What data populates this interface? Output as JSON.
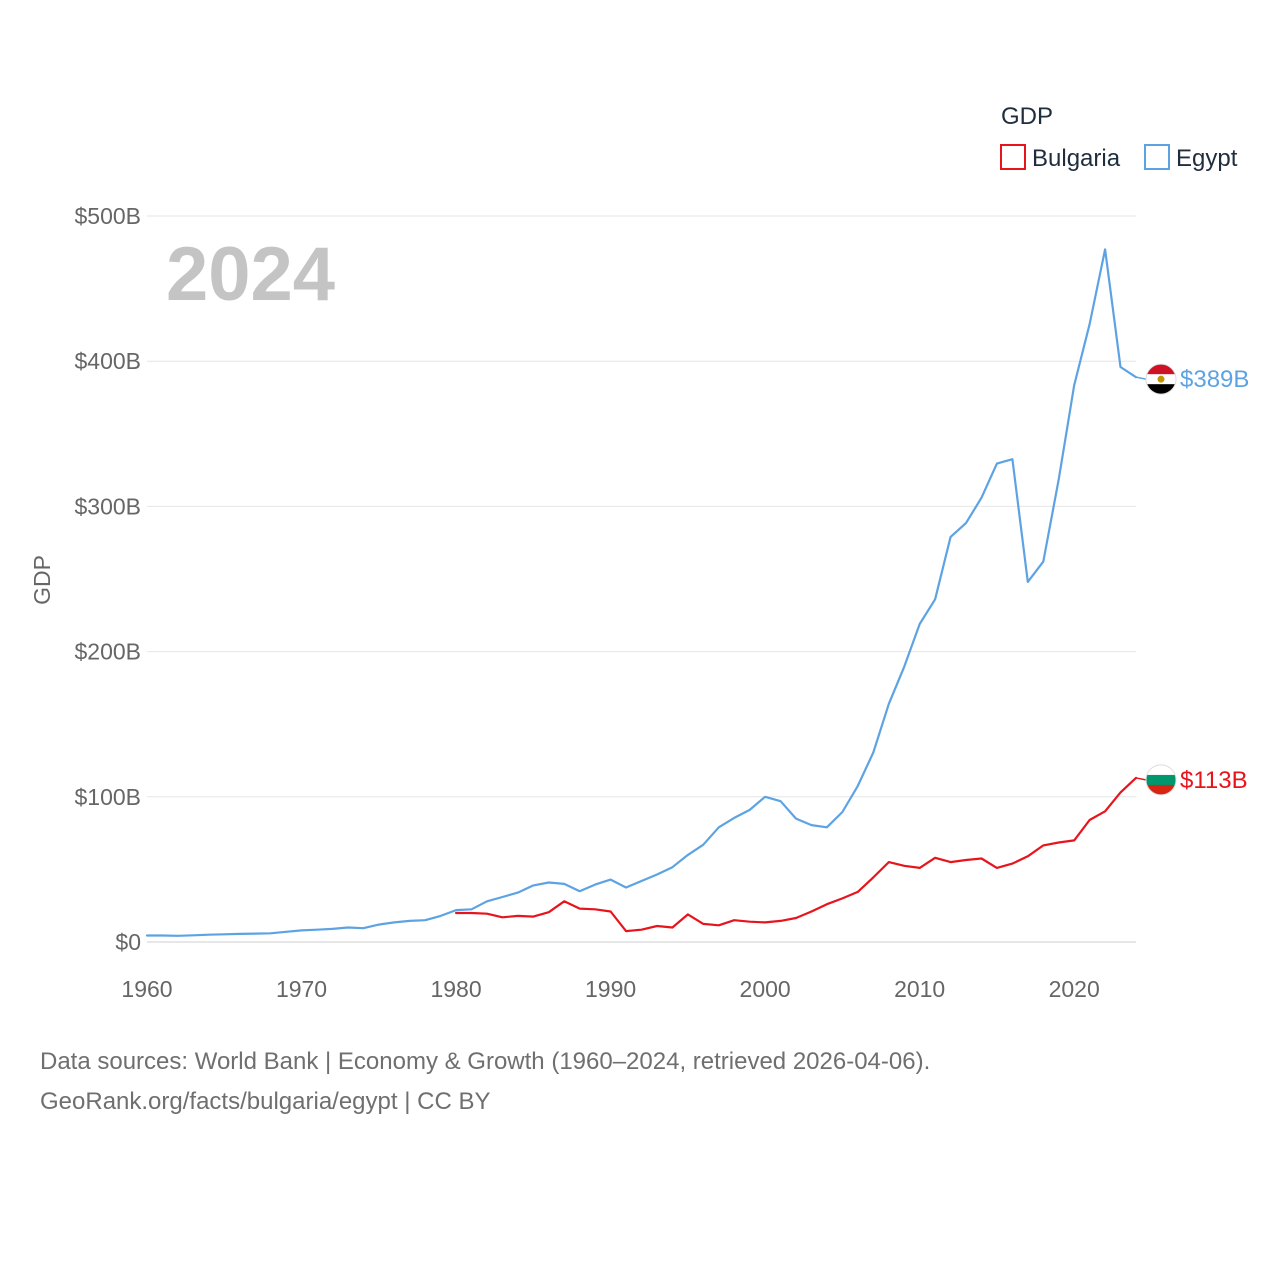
{
  "chart_data": {
    "type": "line",
    "title": "GDP",
    "year_overlay": "2024",
    "xlabel": "",
    "ylabel": "GDP",
    "xlim": [
      1960,
      2024
    ],
    "ylim": [
      0,
      500
    ],
    "unit": "billion USD",
    "x_ticks": [
      1960,
      1970,
      1980,
      1990,
      2000,
      2010,
      2020
    ],
    "x_tick_labels": [
      "1960",
      "1970",
      "1980",
      "1990",
      "2000",
      "2010",
      "2020"
    ],
    "y_ticks": [
      0,
      100,
      200,
      300,
      400,
      500
    ],
    "y_tick_labels": [
      "$0",
      "$100B",
      "$200B",
      "$300B",
      "$400B",
      "$500B"
    ],
    "grid": true,
    "legend": {
      "title": "GDP",
      "position": "top-right"
    },
    "series": [
      {
        "name": "Bulgaria",
        "color": "#e8141c",
        "end_label": "$113B",
        "flag_icon": "bulgaria-flag-icon",
        "x": [
          1980,
          1981,
          1982,
          1983,
          1984,
          1985,
          1986,
          1987,
          1988,
          1989,
          1990,
          1991,
          1992,
          1993,
          1994,
          1995,
          1996,
          1997,
          1998,
          1999,
          2000,
          2001,
          2002,
          2003,
          2004,
          2005,
          2006,
          2007,
          2008,
          2009,
          2010,
          2011,
          2012,
          2013,
          2014,
          2015,
          2016,
          2017,
          2018,
          2019,
          2020,
          2021,
          2022,
          2023,
          2024
        ],
        "values": [
          20,
          20,
          19.5,
          17,
          18,
          17.5,
          20.5,
          28,
          23,
          22.5,
          21,
          7.5,
          8.5,
          11,
          10,
          19,
          12.5,
          11.5,
          15,
          14,
          13.5,
          14.5,
          16.5,
          21,
          26,
          30,
          34.5,
          44.5,
          55,
          52.5,
          51,
          58,
          55,
          56.5,
          57.5,
          51,
          54,
          59,
          66.5,
          68.5,
          70,
          84,
          90,
          103,
          113
        ]
      },
      {
        "name": "Egypt",
        "color": "#5da3e3",
        "end_label": "$389B",
        "flag_icon": "egypt-flag-icon",
        "x": [
          1960,
          1961,
          1962,
          1963,
          1964,
          1965,
          1966,
          1967,
          1968,
          1969,
          1970,
          1971,
          1972,
          1973,
          1974,
          1975,
          1976,
          1977,
          1978,
          1979,
          1980,
          1981,
          1982,
          1983,
          1984,
          1985,
          1986,
          1987,
          1988,
          1989,
          1990,
          1991,
          1992,
          1993,
          1994,
          1995,
          1996,
          1997,
          1998,
          1999,
          2000,
          2001,
          2002,
          2003,
          2004,
          2005,
          2006,
          2007,
          2008,
          2009,
          2010,
          2011,
          2012,
          2013,
          2014,
          2015,
          2016,
          2017,
          2018,
          2019,
          2020,
          2021,
          2022,
          2023,
          2024
        ],
        "values": [
          4.5,
          4.5,
          4.3,
          4.6,
          5,
          5.3,
          5.6,
          5.8,
          6,
          7,
          8,
          8.5,
          9,
          10,
          9.5,
          12,
          13.5,
          14.5,
          15,
          18,
          22,
          22.5,
          28,
          31,
          34,
          39,
          41,
          40,
          35,
          39.5,
          43,
          37.5,
          42,
          46.5,
          51.5,
          60,
          67,
          79,
          85.5,
          91,
          100,
          97,
          85,
          80.5,
          79,
          89.5,
          107.5,
          130.5,
          164,
          189.5,
          219,
          236,
          279,
          288.5,
          306,
          329.5,
          332.5,
          248,
          262,
          318.5,
          383.5,
          425.5,
          477,
          396,
          389
        ]
      }
    ]
  },
  "footer": {
    "line1": "Data sources: World Bank | Economy & Growth (1960–2024, retrieved 2026-04-06).",
    "line2": "GeoRank.org/facts/bulgaria/egypt | CC BY"
  }
}
